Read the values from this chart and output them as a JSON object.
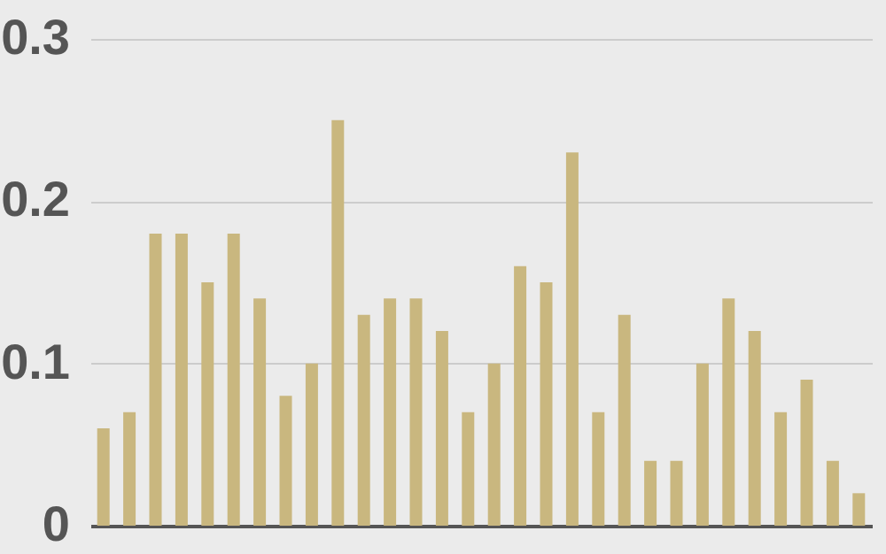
{
  "chart_data": {
    "type": "bar",
    "categories": [
      null,
      null,
      null,
      null,
      null,
      null,
      null,
      null,
      null,
      null,
      null,
      null,
      null,
      null,
      null,
      null,
      null,
      null,
      null,
      null,
      null,
      null,
      null,
      null,
      null,
      null,
      null,
      null,
      null,
      null
    ],
    "values": [
      0.06,
      0.07,
      0.18,
      0.18,
      0.15,
      0.18,
      0.14,
      0.08,
      0.1,
      0.25,
      0.13,
      0.14,
      0.14,
      0.12,
      0.07,
      0.1,
      0.16,
      0.15,
      0.23,
      0.07,
      0.13,
      0.04,
      0.04,
      0.1,
      0.14,
      0.12,
      0.07,
      0.09,
      0.04,
      0.02
    ],
    "color": "#c9b77f",
    "ylim": [
      0,
      0.3
    ],
    "yticks": [
      0,
      0.1,
      0.2,
      0.3
    ],
    "grid": "y",
    "tick_labels": "y"
  }
}
